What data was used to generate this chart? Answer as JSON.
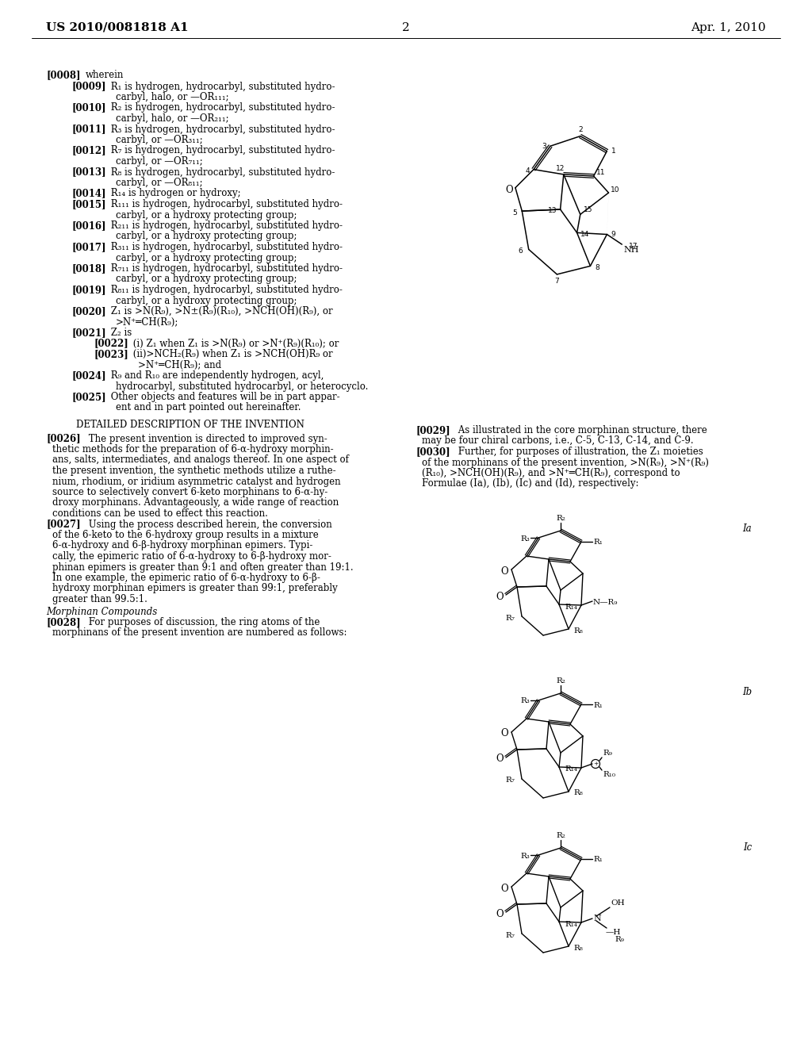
{
  "bg_color": "#ffffff",
  "text_color": "#000000",
  "header_left": "US 2010/0081818 A1",
  "header_center": "2",
  "header_right": "Apr. 1, 2010"
}
